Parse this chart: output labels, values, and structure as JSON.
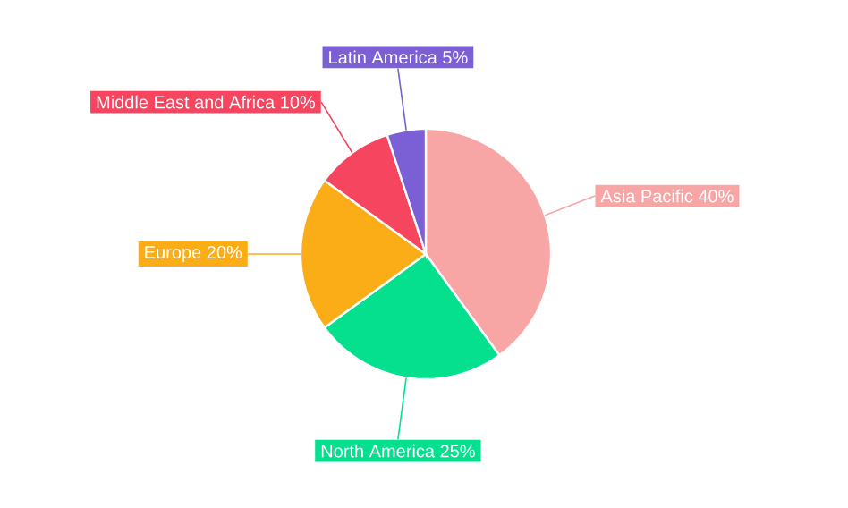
{
  "chart_data": {
    "type": "pie",
    "categories": [
      "Asia Pacific",
      "North America",
      "Europe",
      "Middle East and Africa",
      "Latin America"
    ],
    "values": [
      40,
      25,
      20,
      10,
      5
    ],
    "value_labels": [
      "40%",
      "25%",
      "20%",
      "10%",
      "5%"
    ],
    "colors": [
      "#f8a5a5",
      "#05e08f",
      "#fbad18",
      "#f5455f",
      "#7a5fd5"
    ]
  }
}
